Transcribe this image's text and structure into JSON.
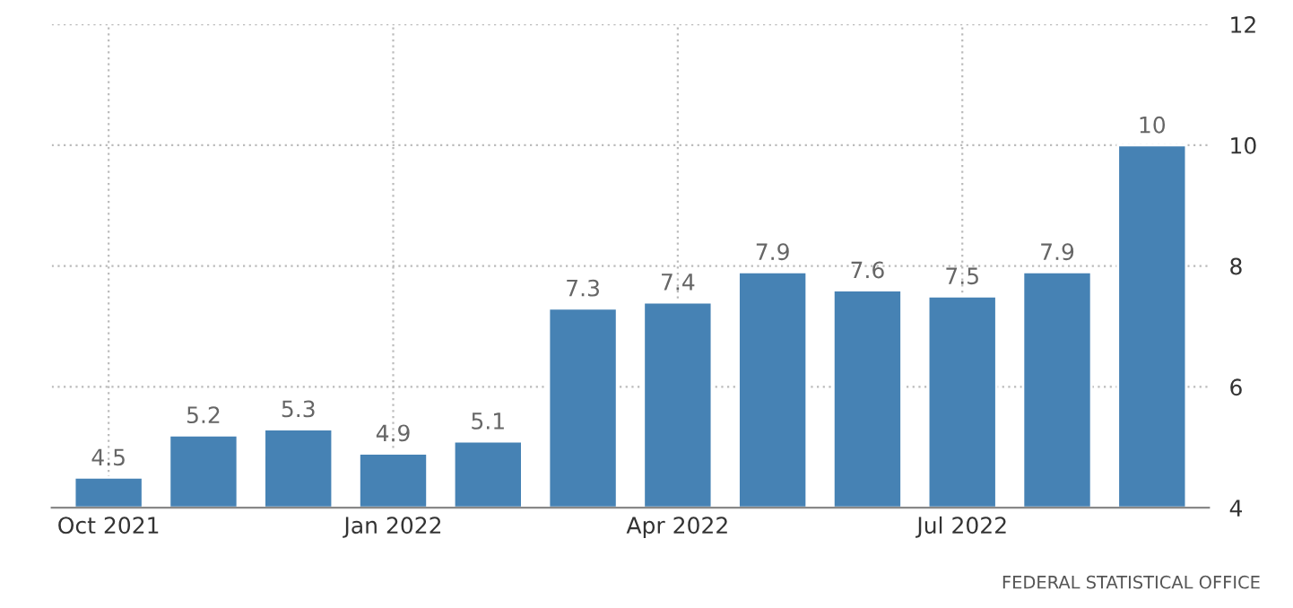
{
  "chart_data": {
    "type": "bar",
    "categories": [
      "Oct 2021",
      null,
      null,
      "Jan 2022",
      null,
      null,
      "Apr 2022",
      null,
      null,
      "Jul 2022",
      null,
      null
    ],
    "values": [
      4.5,
      5.2,
      5.3,
      4.9,
      5.1,
      7.3,
      7.4,
      7.9,
      7.6,
      7.5,
      7.9,
      10
    ],
    "color": "#4682b4",
    "ylim": [
      4,
      12
    ],
    "yticks": [
      4,
      6,
      8,
      10,
      12
    ],
    "grid": true,
    "data_labels": true,
    "annotations": [
      "FEDERAL STATISTICAL OFFICE"
    ]
  }
}
